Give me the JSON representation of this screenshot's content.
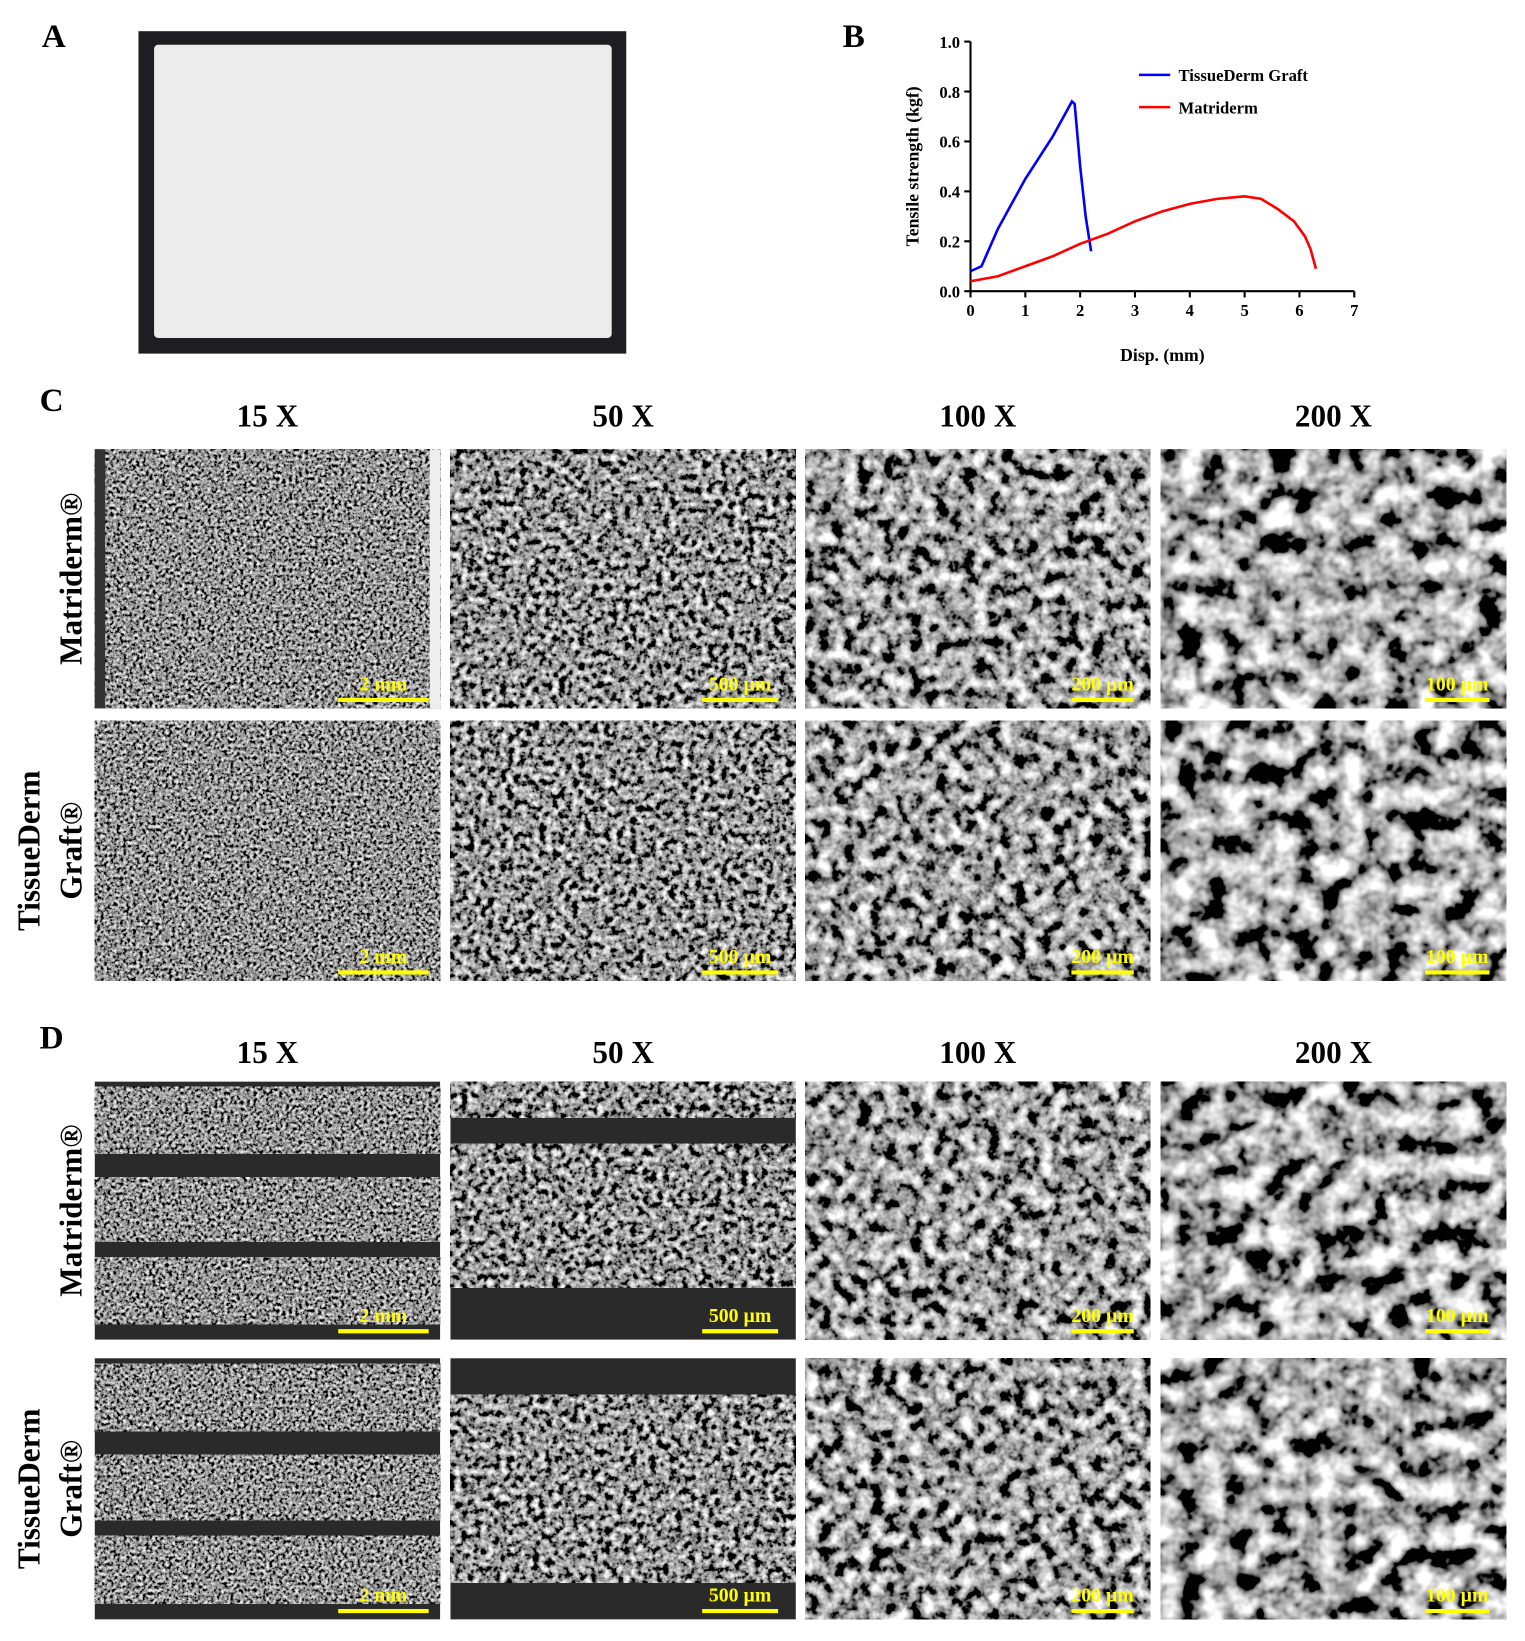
{
  "panel_labels": [
    "A",
    "B",
    "C",
    "D"
  ],
  "chart_data": {
    "type": "line",
    "x_label": "Disp. (mm)",
    "y_label": "Tensile strength (kgf)",
    "xlim": [
      0,
      7
    ],
    "xticks": [
      0,
      1,
      2,
      3,
      4,
      5,
      6,
      7
    ],
    "ylim": [
      0,
      1
    ],
    "yticks": [
      {
        "value": 0,
        "label": "0.0"
      },
      0.2,
      0.4,
      0.6,
      0.8,
      {
        "value": 1,
        "label": "1.0"
      }
    ],
    "series": [
      {
        "name": "TissueDerm Graft",
        "color": "#0000ff",
        "x": [
          0,
          0.1,
          0.2,
          0.5,
          1.0,
          1.5,
          1.85,
          1.9,
          2.0,
          2.1,
          2.2
        ],
        "values": [
          0.08,
          0.09,
          0.1,
          0.25,
          0.45,
          0.62,
          0.76,
          0.75,
          0.5,
          0.3,
          0.16
        ]
      },
      {
        "name": "Matriderm",
        "color": "#ff0000",
        "x": [
          0,
          0.5,
          1,
          1.5,
          2,
          2.5,
          3,
          3.5,
          4,
          4.5,
          5,
          5.3,
          5.6,
          5.9,
          6.1,
          6.2,
          6.3
        ],
        "values": [
          0.04,
          0.06,
          0.1,
          0.14,
          0.19,
          0.23,
          0.28,
          0.32,
          0.35,
          0.37,
          0.38,
          0.37,
          0.33,
          0.28,
          0.22,
          0.17,
          0.09
        ]
      }
    ]
  },
  "sem": {
    "columns": [
      "15 X",
      "50 X",
      "100 X",
      "200 X"
    ],
    "rows": [
      [
        "Matriderm®"
      ],
      [
        "TissueDerm",
        "Graft®"
      ]
    ],
    "scale_bars": [
      "2 mm",
      "500 µm",
      "200 µm",
      "100 µm"
    ]
  }
}
